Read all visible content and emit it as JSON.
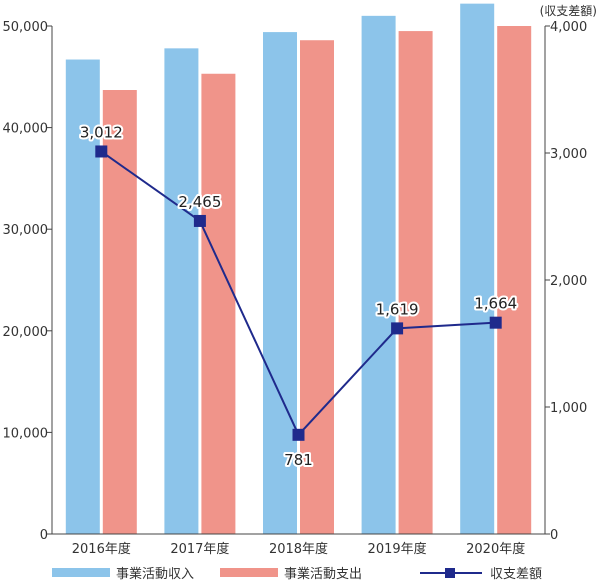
{
  "chart_data": {
    "type": "bar",
    "categories": [
      "2016年度",
      "2017年度",
      "2018年度",
      "2019年度",
      "2020年度"
    ],
    "series": [
      {
        "name": "事業活動収入",
        "type": "bar",
        "axis": "left",
        "color": "#8cc4ea",
        "values": [
          46700,
          47800,
          49400,
          51000,
          52200
        ]
      },
      {
        "name": "事業活動支出",
        "type": "bar",
        "axis": "left",
        "color": "#f0948a",
        "values": [
          43700,
          45300,
          48600,
          49500,
          50000
        ]
      },
      {
        "name": "収支差額",
        "type": "line",
        "axis": "right",
        "color": "#1f2a8c",
        "values": [
          3012,
          2465,
          781,
          1619,
          1664
        ],
        "labels": [
          "3,012",
          "2,465",
          "781",
          "1,619",
          "1,664"
        ]
      }
    ],
    "left_axis": {
      "ylim": [
        0,
        50000
      ],
      "ticks": [
        "0",
        "10,000",
        "20,000",
        "30,000",
        "40,000",
        "50,000"
      ]
    },
    "right_axis": {
      "ylim": [
        0,
        4000
      ],
      "ticks": [
        "0",
        "1,000",
        "2,000",
        "3,000",
        "4,000"
      ],
      "unit_label": "(収支差額)"
    },
    "grid": false,
    "legend_position": "bottom"
  }
}
